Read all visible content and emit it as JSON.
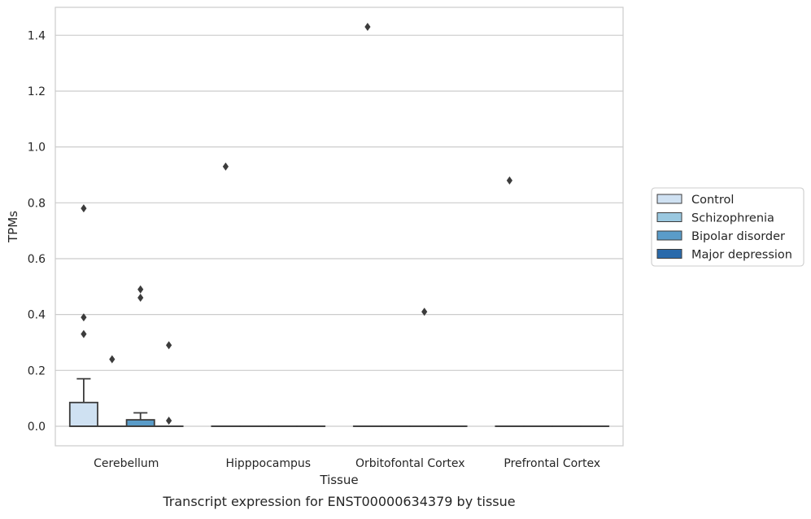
{
  "chart_data": {
    "type": "box",
    "title": "",
    "caption": "Transcript expression for ENST00000634379 by tissue",
    "xlabel": "Tissue",
    "ylabel": "TPMs",
    "ylim": [
      -0.07,
      1.5
    ],
    "yticks": [
      0.0,
      0.2,
      0.4,
      0.6,
      0.8,
      1.0,
      1.2,
      1.4
    ],
    "grid": "horizontal",
    "legend_position": "right",
    "categories": [
      "Cerebellum",
      "Hipppocampus",
      "Orbitofontal Cortex",
      "Prefrontal Cortex"
    ],
    "series": [
      {
        "name": "Control",
        "color": "#cfe1f2",
        "boxes": [
          {
            "category": "Cerebellum",
            "whisker_low": 0.0,
            "q1": 0.0,
            "median": 0.0,
            "q3": 0.085,
            "whisker_high": 0.17,
            "outliers": [
              0.33,
              0.39,
              0.78
            ]
          },
          {
            "category": "Hipppocampus",
            "whisker_low": 0.0,
            "q1": 0.0,
            "median": 0.0,
            "q3": 0.0,
            "whisker_high": 0.0,
            "outliers": [
              0.93
            ]
          },
          {
            "category": "Orbitofontal Cortex",
            "whisker_low": 0.0,
            "q1": 0.0,
            "median": 0.0,
            "q3": 0.0,
            "whisker_high": 0.0,
            "outliers": [
              1.43
            ]
          },
          {
            "category": "Prefrontal Cortex",
            "whisker_low": 0.0,
            "q1": 0.0,
            "median": 0.0,
            "q3": 0.0,
            "whisker_high": 0.0,
            "outliers": [
              0.88
            ]
          }
        ]
      },
      {
        "name": "Schizophrenia",
        "color": "#9ac8e0",
        "boxes": [
          {
            "category": "Cerebellum",
            "whisker_low": 0.0,
            "q1": 0.0,
            "median": 0.0,
            "q3": 0.0,
            "whisker_high": 0.0,
            "outliers": [
              0.24
            ]
          },
          {
            "category": "Hipppocampus",
            "whisker_low": 0.0,
            "q1": 0.0,
            "median": 0.0,
            "q3": 0.0,
            "whisker_high": 0.0,
            "outliers": []
          },
          {
            "category": "Orbitofontal Cortex",
            "whisker_low": 0.0,
            "q1": 0.0,
            "median": 0.0,
            "q3": 0.0,
            "whisker_high": 0.0,
            "outliers": []
          },
          {
            "category": "Prefrontal Cortex",
            "whisker_low": 0.0,
            "q1": 0.0,
            "median": 0.0,
            "q3": 0.0,
            "whisker_high": 0.0,
            "outliers": []
          }
        ]
      },
      {
        "name": "Bipolar disorder",
        "color": "#5a9cc9",
        "boxes": [
          {
            "category": "Cerebellum",
            "whisker_low": 0.0,
            "q1": 0.0,
            "median": 0.0,
            "q3": 0.023,
            "whisker_high": 0.048,
            "outliers": [
              0.46,
              0.49
            ]
          },
          {
            "category": "Hipppocampus",
            "whisker_low": 0.0,
            "q1": 0.0,
            "median": 0.0,
            "q3": 0.0,
            "whisker_high": 0.0,
            "outliers": []
          },
          {
            "category": "Orbitofontal Cortex",
            "whisker_low": 0.0,
            "q1": 0.0,
            "median": 0.0,
            "q3": 0.0,
            "whisker_high": 0.0,
            "outliers": [
              0.41
            ]
          },
          {
            "category": "Prefrontal Cortex",
            "whisker_low": 0.0,
            "q1": 0.0,
            "median": 0.0,
            "q3": 0.0,
            "whisker_high": 0.0,
            "outliers": []
          }
        ]
      },
      {
        "name": "Major depression",
        "color": "#2a6aab",
        "boxes": [
          {
            "category": "Cerebellum",
            "whisker_low": 0.0,
            "q1": 0.0,
            "median": 0.0,
            "q3": 0.0,
            "whisker_high": 0.0,
            "outliers": [
              0.02,
              0.29
            ]
          },
          {
            "category": "Hipppocampus",
            "whisker_low": 0.0,
            "q1": 0.0,
            "median": 0.0,
            "q3": 0.0,
            "whisker_high": 0.0,
            "outliers": []
          },
          {
            "category": "Orbitofontal Cortex",
            "whisker_low": 0.0,
            "q1": 0.0,
            "median": 0.0,
            "q3": 0.0,
            "whisker_high": 0.0,
            "outliers": []
          },
          {
            "category": "Prefrontal Cortex",
            "whisker_low": 0.0,
            "q1": 0.0,
            "median": 0.0,
            "q3": 0.0,
            "whisker_high": 0.0,
            "outliers": []
          }
        ]
      }
    ]
  }
}
